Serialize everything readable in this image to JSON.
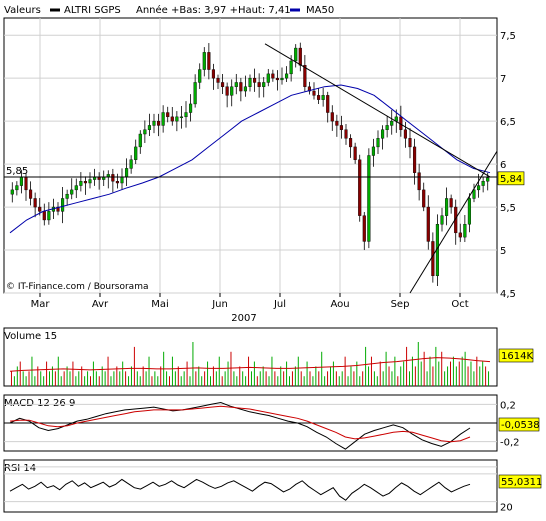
{
  "legend": {
    "valeurs_label": "Valeurs",
    "symbol": "ALTRI SGPS",
    "stats": "Année +Bas: 3,97 +Haut: 7,41",
    "ma_label": "MA50"
  },
  "credit": "© IT-Finance.com / Boursorama",
  "colors": {
    "up": "#00aa00",
    "down": "#880000",
    "ma": "#0000aa",
    "macd": "#000000",
    "signal": "#cc0000",
    "volume_bar": "#00aa00",
    "volume_bar_down": "#cc0000",
    "volume_ma": "#cc0000",
    "grid": "#d0d0d0",
    "current_box": "#ffff00"
  },
  "chart_data": [
    {
      "type": "candlestick",
      "title": "",
      "x_labels": [
        "Mar",
        "Avr",
        "Mai",
        "Jun",
        "Jul",
        "Aou",
        "Sep",
        "Oct"
      ],
      "x_year": "2007",
      "y_ticks": [
        "7,5",
        "7",
        "6,5",
        "6",
        "5,5",
        "5",
        "4,5"
      ],
      "y_tick_values": [
        7.5,
        7.0,
        6.5,
        6.0,
        5.5,
        5.0,
        4.5
      ],
      "ylim": [
        4.5,
        7.7
      ],
      "reference_line": {
        "value": 5.85,
        "label": "5,85"
      },
      "current_value": {
        "value": 5.84,
        "label": "5,84"
      },
      "close_series": [
        5.7,
        5.75,
        5.85,
        5.7,
        5.6,
        5.5,
        5.45,
        5.35,
        5.45,
        5.5,
        5.45,
        5.6,
        5.65,
        5.7,
        5.75,
        5.8,
        5.78,
        5.82,
        5.85,
        5.82,
        5.85,
        5.88,
        5.8,
        5.78,
        5.85,
        5.95,
        6.05,
        6.2,
        6.35,
        6.4,
        6.45,
        6.5,
        6.45,
        6.6,
        6.55,
        6.5,
        6.55,
        6.55,
        6.6,
        6.7,
        6.95,
        7.1,
        7.3,
        7.1,
        7.0,
        6.95,
        6.9,
        6.8,
        6.9,
        6.95,
        6.85,
        6.9,
        7.0,
        6.95,
        6.9,
        6.95,
        7.05,
        7.0,
        6.98,
        7.0,
        7.05,
        7.2,
        7.35,
        7.15,
        6.9,
        6.85,
        6.8,
        6.75,
        6.8,
        6.6,
        6.5,
        6.45,
        6.4,
        6.3,
        6.2,
        6.05,
        5.4,
        5.1,
        6.1,
        6.2,
        6.3,
        6.4,
        6.45,
        6.5,
        6.55,
        6.4,
        6.3,
        6.2,
        5.9,
        5.7,
        5.5,
        5.1,
        4.7,
        5.3,
        5.4,
        5.6,
        5.5,
        5.2,
        5.15,
        5.3,
        5.6,
        5.7,
        5.75,
        5.8,
        5.84
      ],
      "ma50_series": [
        5.2,
        5.35,
        5.45,
        5.5,
        5.55,
        5.6,
        5.65,
        5.72,
        5.78,
        5.85,
        5.95,
        6.05,
        6.2,
        6.35,
        6.5,
        6.6,
        6.7,
        6.8,
        6.85,
        6.9,
        6.92,
        6.88,
        6.8,
        6.65,
        6.5,
        6.35,
        6.2,
        6.05,
        5.95,
        5.9
      ],
      "trendline_down": {
        "from": [
          7.4
        ],
        "to": [
          5.85
        ]
      },
      "trendline_up": {
        "from": [
          4.5
        ],
        "to": [
          6.15
        ]
      }
    },
    {
      "type": "bar",
      "title": "Volume 15",
      "current_value": {
        "label": "1614K"
      },
      "values": [
        3,
        2,
        4,
        5,
        3,
        2,
        3,
        6,
        2,
        4,
        3,
        2,
        5,
        3,
        4,
        3,
        6,
        2,
        3,
        4,
        3,
        5,
        2,
        3,
        4,
        2,
        3,
        2,
        5,
        3,
        2,
        4,
        3,
        6,
        2,
        3,
        4,
        3,
        5,
        3,
        2,
        4,
        8,
        3,
        2,
        4,
        3,
        6,
        2,
        3,
        2,
        4,
        7,
        3,
        2,
        6,
        3,
        4,
        2,
        3,
        5,
        2,
        9,
        3,
        4,
        2,
        3,
        5,
        2,
        4,
        3,
        6,
        2,
        3,
        5,
        7,
        3,
        2,
        4,
        3,
        2,
        6,
        3,
        5,
        2,
        3,
        4,
        3,
        2,
        6,
        3,
        2,
        4,
        3,
        5,
        2,
        3,
        4,
        6,
        3,
        2,
        5,
        3,
        2,
        4,
        3,
        7,
        2,
        3,
        4,
        5,
        3,
        2,
        3,
        6,
        2,
        4,
        3,
        5,
        2,
        3,
        8,
        4,
        6,
        3,
        2,
        5,
        3,
        7,
        4,
        3,
        6,
        2,
        4,
        5,
        8,
        3,
        6,
        4,
        9,
        5,
        7,
        3,
        6,
        4,
        8,
        5,
        7,
        3,
        4,
        5,
        6,
        4,
        5,
        6,
        7,
        4,
        5,
        3,
        6,
        4,
        5,
        4,
        3
      ],
      "ma_values": [
        3,
        3.2,
        3.3,
        3.4,
        3.5,
        3.4,
        3.3,
        3.4,
        3.5,
        3.6,
        3.6,
        3.5,
        3.5,
        3.6,
        3.7,
        3.6,
        3.6,
        3.7,
        3.8,
        3.7,
        3.6,
        3.6,
        3.7,
        3.8,
        3.9,
        4.0,
        4.2,
        4.5,
        4.8,
        5.0,
        5.3,
        5.6,
        5.8,
        5.7,
        5.5,
        5.2,
        5.0
      ]
    },
    {
      "type": "line",
      "title": "MACD 12 26 9",
      "y_ticks": [
        "0,2",
        "0",
        "-0,2"
      ],
      "y_tick_values": [
        0.2,
        0,
        -0.2
      ],
      "ylim": [
        -0.3,
        0.3
      ],
      "current_value": {
        "label": "-0,0538"
      },
      "series": [
        {
          "values": [
            0.0,
            0.05,
            0.02,
            -0.05,
            -0.08,
            -0.06,
            -0.02,
            0.02,
            0.04,
            0.07,
            0.1,
            0.12,
            0.14,
            0.15,
            0.16,
            0.17,
            0.15,
            0.13,
            0.14,
            0.16,
            0.18,
            0.2,
            0.22,
            0.18,
            0.15,
            0.12,
            0.1,
            0.08,
            0.05,
            0.02,
            0.0,
            -0.04,
            -0.1,
            -0.15,
            -0.22,
            -0.28,
            -0.2,
            -0.12,
            -0.08,
            -0.05,
            -0.02,
            -0.05,
            -0.12,
            -0.18,
            -0.22,
            -0.25,
            -0.2,
            -0.12,
            -0.054
          ]
        },
        {
          "values": [
            0.02,
            0.03,
            0.03,
            0.0,
            -0.03,
            -0.04,
            -0.03,
            0.0,
            0.02,
            0.04,
            0.06,
            0.08,
            0.1,
            0.12,
            0.13,
            0.14,
            0.14,
            0.14,
            0.14,
            0.15,
            0.16,
            0.17,
            0.18,
            0.17,
            0.16,
            0.15,
            0.13,
            0.11,
            0.09,
            0.07,
            0.05,
            0.02,
            -0.02,
            -0.06,
            -0.1,
            -0.15,
            -0.17,
            -0.16,
            -0.14,
            -0.12,
            -0.1,
            -0.09,
            -0.1,
            -0.13,
            -0.16,
            -0.19,
            -0.2,
            -0.19,
            -0.15
          ]
        }
      ]
    },
    {
      "type": "line",
      "title": "RSI 14",
      "y_ticks": [
        "20"
      ],
      "y_tick_values": [
        20
      ],
      "ylim": [
        15,
        90
      ],
      "current_value": {
        "label": "55,0311"
      },
      "values": [
        45,
        50,
        55,
        48,
        52,
        58,
        50,
        53,
        47,
        55,
        60,
        52,
        57,
        50,
        54,
        58,
        51,
        55,
        62,
        56,
        50,
        48,
        53,
        58,
        52,
        55,
        60,
        54,
        50,
        56,
        62,
        58,
        53,
        49,
        52,
        57,
        60,
        55,
        50,
        45,
        52,
        58,
        56,
        50,
        44,
        48,
        55,
        60,
        52,
        46,
        40,
        45,
        50,
        38,
        32,
        42,
        48,
        55,
        50,
        44,
        38,
        42,
        50,
        57,
        52,
        45,
        40,
        46,
        52,
        58,
        50,
        44,
        48,
        52,
        55
      ]
    }
  ]
}
